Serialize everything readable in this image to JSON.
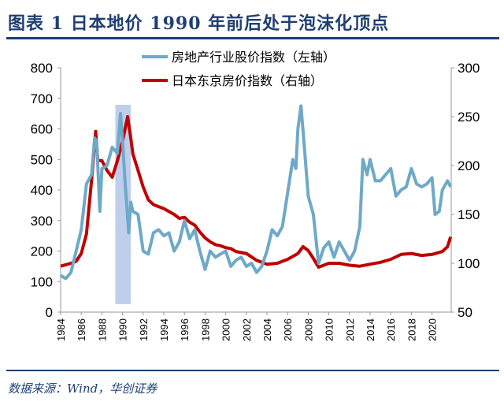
{
  "title": "图表 1  日本地价 1990 年前后处于泡沫化顶点",
  "source": "数据来源：Wind，华创证券",
  "chart_data": {
    "type": "line",
    "title": "日本地价 1990 年前后处于泡沫化顶点",
    "legend_position": "top-center",
    "grid": false,
    "x_ticks": [
      "1984",
      "1986",
      "1988",
      "1990",
      "1992",
      "1994",
      "1996",
      "1998",
      "2000",
      "2002",
      "2004",
      "2006",
      "2008",
      "2010",
      "2012",
      "2014",
      "2016",
      "2018",
      "2020"
    ],
    "xlim": [
      1984,
      2022
    ],
    "y_left": {
      "ylim": [
        0,
        800
      ],
      "ticks": [
        "0",
        "100",
        "200",
        "300",
        "400",
        "500",
        "600",
        "700",
        "800"
      ]
    },
    "y_right": {
      "ylim": [
        50,
        300
      ],
      "ticks": [
        "50",
        "100",
        "150",
        "200",
        "250",
        "300"
      ]
    },
    "highlight_band": {
      "x": [
        1989.3,
        1990.8
      ],
      "color": "#b4c6e7"
    },
    "series": [
      {
        "name": "房地产行业股价指数（左轴）",
        "axis": "left",
        "color": "#6ea9c8",
        "x": [
          1984,
          1984.5,
          1985,
          1985.5,
          1986,
          1986.5,
          1987,
          1987.3,
          1987.5,
          1987.8,
          1988,
          1988.5,
          1989,
          1989.5,
          1989.8,
          1990,
          1990.3,
          1990.6,
          1990.8,
          1991,
          1991.5,
          1992,
          1992.5,
          1993,
          1993.5,
          1994,
          1994.5,
          1995,
          1995.5,
          1996,
          1996.5,
          1997,
          1997.5,
          1998,
          1998.5,
          1999,
          1999.5,
          2000,
          2000.5,
          2001,
          2001.5,
          2002,
          2002.5,
          2003,
          2003.5,
          2004,
          2004.5,
          2005,
          2005.5,
          2006,
          2006.5,
          2006.8,
          2007,
          2007.3,
          2007.6,
          2008,
          2008.5,
          2009,
          2009.5,
          2010,
          2010.5,
          2011,
          2011.5,
          2012,
          2012.5,
          2013,
          2013.3,
          2013.7,
          2014,
          2014.5,
          2015,
          2015.5,
          2016,
          2016.5,
          2017,
          2017.5,
          2018,
          2018.5,
          2019,
          2019.5,
          2020,
          2020.3,
          2020.7,
          2021,
          2021.5,
          2021.8
        ],
        "values": [
          120,
          110,
          130,
          200,
          270,
          420,
          450,
          570,
          560,
          330,
          470,
          480,
          540,
          520,
          650,
          560,
          400,
          260,
          360,
          330,
          320,
          200,
          190,
          260,
          270,
          250,
          260,
          200,
          230,
          300,
          240,
          270,
          200,
          140,
          200,
          180,
          190,
          200,
          150,
          170,
          180,
          150,
          160,
          130,
          150,
          200,
          270,
          250,
          280,
          390,
          500,
          470,
          600,
          675,
          550,
          380,
          320,
          160,
          210,
          230,
          180,
          230,
          200,
          170,
          200,
          280,
          500,
          450,
          500,
          430,
          430,
          450,
          470,
          380,
          400,
          410,
          470,
          420,
          410,
          420,
          440,
          320,
          330,
          400,
          430,
          410
        ]
      },
      {
        "name": "日本东京房价指数（右轴）",
        "axis": "right",
        "color": "#c00000",
        "x": [
          1984,
          1985,
          1985.5,
          1986,
          1986.5,
          1987,
          1987.4,
          1987.6,
          1988,
          1988.5,
          1989,
          1989.5,
          1990,
          1990.5,
          1990.8,
          1991,
          1991.5,
          1992,
          1992.5,
          1993,
          1993.5,
          1994,
          1995,
          1995.5,
          1996,
          1996.5,
          1997,
          1997.5,
          1998,
          1998.5,
          1999,
          1999.5,
          2000,
          2000.5,
          2001,
          2002,
          2003,
          2004,
          2005,
          2006,
          2007,
          2007.5,
          2008,
          2008.5,
          2009,
          2010,
          2011,
          2012,
          2013,
          2014,
          2015,
          2016,
          2017,
          2018,
          2019,
          2020,
          2021,
          2021.5,
          2021.8
        ],
        "values": [
          97,
          100,
          102,
          110,
          130,
          185,
          235,
          205,
          205,
          195,
          188,
          205,
          225,
          250,
          228,
          212,
          195,
          178,
          165,
          160,
          158,
          156,
          150,
          146,
          147,
          142,
          139,
          132,
          126,
          122,
          119,
          118,
          116,
          115,
          112,
          110,
          103,
          99,
          100,
          104,
          110,
          117,
          113,
          105,
          96,
          100,
          100,
          98,
          97,
          99,
          101,
          104,
          109,
          110,
          108,
          109,
          112,
          117,
          127
        ]
      }
    ]
  }
}
